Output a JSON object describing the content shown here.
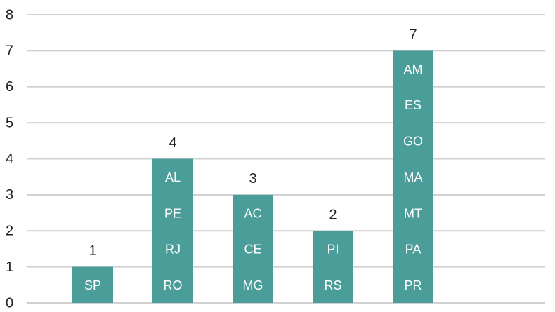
{
  "chart_data": {
    "type": "bar",
    "categories": [
      null,
      null,
      null,
      null,
      null
    ],
    "values": [
      1,
      4,
      3,
      2,
      7
    ],
    "segment_labels": [
      [
        "SP"
      ],
      [
        "RO",
        "RJ",
        "PE",
        "AL"
      ],
      [
        "MG",
        "CE",
        "AC"
      ],
      [
        "RS",
        "PI"
      ],
      [
        "PR",
        "PA",
        "MT",
        "MA",
        "GO",
        "ES",
        "AM"
      ]
    ],
    "color": "#4a9d98",
    "ylim": [
      0,
      8
    ],
    "yticks": [
      0,
      1,
      2,
      3,
      4,
      5,
      6,
      7,
      8
    ],
    "grid": true
  }
}
